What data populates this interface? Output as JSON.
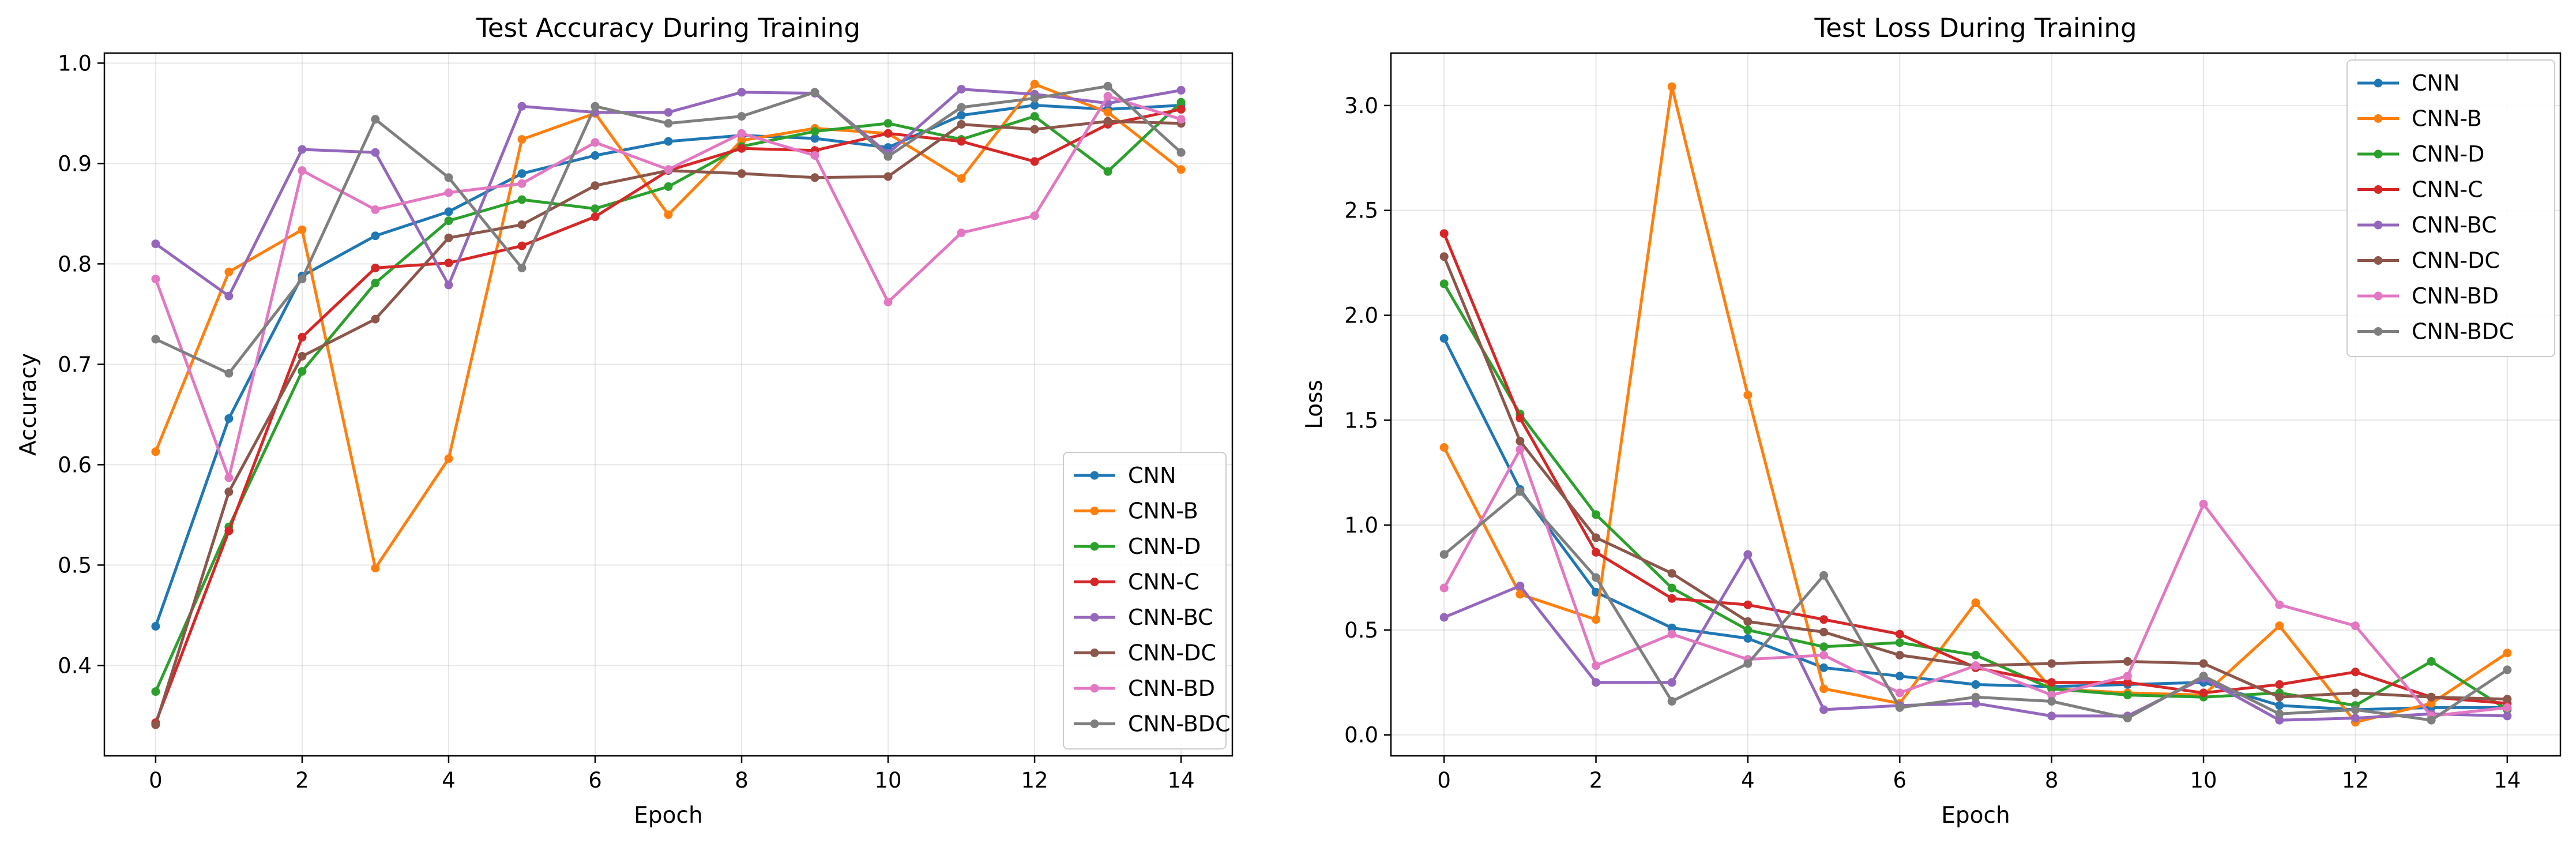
{
  "chart_data": [
    {
      "type": "line",
      "title": "Test Accuracy During Training",
      "xlabel": "Epoch",
      "ylabel": "Accuracy",
      "xlim": [
        -0.7,
        14.7
      ],
      "ylim": [
        0.31,
        1.01
      ],
      "xticks": [
        0,
        2,
        4,
        6,
        8,
        10,
        12,
        14
      ],
      "yticks": [
        0.4,
        0.5,
        0.6,
        0.7,
        0.8,
        0.9,
        1.0
      ],
      "ytick_labels": [
        "0.4",
        "0.5",
        "0.6",
        "0.7",
        "0.8",
        "0.9",
        "1.0"
      ],
      "grid": true,
      "legend_position": "lower-right",
      "x": [
        0,
        1,
        2,
        3,
        4,
        5,
        6,
        7,
        8,
        9,
        10,
        11,
        12,
        13,
        14
      ],
      "series": [
        {
          "name": "CNN",
          "color": "#1f77b4",
          "values": [
            0.439,
            0.646,
            0.788,
            0.828,
            0.852,
            0.89,
            0.908,
            0.922,
            0.928,
            0.925,
            0.916,
            0.948,
            0.958,
            0.954,
            0.958
          ]
        },
        {
          "name": "CNN-B",
          "color": "#ff7f0e",
          "values": [
            0.613,
            0.792,
            0.834,
            0.497,
            0.606,
            0.924,
            0.95,
            0.849,
            0.923,
            0.935,
            0.93,
            0.885,
            0.979,
            0.951,
            0.894
          ]
        },
        {
          "name": "CNN-D",
          "color": "#2ca02c",
          "values": [
            0.374,
            0.538,
            0.693,
            0.781,
            0.843,
            0.864,
            0.855,
            0.877,
            0.917,
            0.932,
            0.94,
            0.924,
            0.947,
            0.892,
            0.961
          ]
        },
        {
          "name": "CNN-C",
          "color": "#d62728",
          "values": [
            0.343,
            0.534,
            0.727,
            0.796,
            0.801,
            0.818,
            0.847,
            0.893,
            0.915,
            0.913,
            0.93,
            0.922,
            0.902,
            0.939,
            0.954
          ]
        },
        {
          "name": "CNN-BC",
          "color": "#9467bd",
          "values": [
            0.82,
            0.768,
            0.914,
            0.911,
            0.779,
            0.957,
            0.951,
            0.951,
            0.971,
            0.97,
            0.91,
            0.974,
            0.969,
            0.96,
            0.973
          ]
        },
        {
          "name": "CNN-DC",
          "color": "#8c564b",
          "values": [
            0.341,
            0.573,
            0.708,
            0.745,
            0.826,
            0.839,
            0.878,
            0.893,
            0.89,
            0.886,
            0.887,
            0.939,
            0.934,
            0.942,
            0.94
          ]
        },
        {
          "name": "CNN-BD",
          "color": "#e377c2",
          "values": [
            0.785,
            0.587,
            0.893,
            0.854,
            0.871,
            0.88,
            0.921,
            0.894,
            0.93,
            0.908,
            0.762,
            0.831,
            0.848,
            0.967,
            0.944
          ]
        },
        {
          "name": "CNN-BDC",
          "color": "#7f7f7f",
          "values": [
            0.725,
            0.691,
            0.785,
            0.944,
            0.886,
            0.796,
            0.957,
            0.94,
            0.947,
            0.971,
            0.907,
            0.956,
            0.965,
            0.977,
            0.911
          ]
        }
      ]
    },
    {
      "type": "line",
      "title": "Test Loss During Training",
      "xlabel": "Epoch",
      "ylabel": "Loss",
      "xlim": [
        -0.7,
        14.7
      ],
      "ylim": [
        -0.1,
        3.25
      ],
      "xticks": [
        0,
        2,
        4,
        6,
        8,
        10,
        12,
        14
      ],
      "yticks": [
        0.0,
        0.5,
        1.0,
        1.5,
        2.0,
        2.5,
        3.0
      ],
      "ytick_labels": [
        "0.0",
        "0.5",
        "1.0",
        "1.5",
        "2.0",
        "2.5",
        "3.0"
      ],
      "grid": true,
      "legend_position": "upper-right",
      "x": [
        0,
        1,
        2,
        3,
        4,
        5,
        6,
        7,
        8,
        9,
        10,
        11,
        12,
        13,
        14
      ],
      "series": [
        {
          "name": "CNN",
          "color": "#1f77b4",
          "values": [
            1.89,
            1.17,
            0.68,
            0.51,
            0.46,
            0.32,
            0.28,
            0.24,
            0.23,
            0.24,
            0.25,
            0.14,
            0.12,
            0.13,
            0.13
          ]
        },
        {
          "name": "CNN-B",
          "color": "#ff7f0e",
          "values": [
            1.37,
            0.67,
            0.55,
            3.09,
            1.62,
            0.22,
            0.15,
            0.63,
            0.22,
            0.2,
            0.19,
            0.52,
            0.06,
            0.15,
            0.39
          ]
        },
        {
          "name": "CNN-D",
          "color": "#2ca02c",
          "values": [
            2.15,
            1.53,
            1.05,
            0.7,
            0.5,
            0.42,
            0.44,
            0.38,
            0.22,
            0.19,
            0.18,
            0.2,
            0.14,
            0.35,
            0.12
          ]
        },
        {
          "name": "CNN-C",
          "color": "#d62728",
          "values": [
            2.39,
            1.51,
            0.87,
            0.65,
            0.62,
            0.55,
            0.48,
            0.32,
            0.25,
            0.25,
            0.2,
            0.24,
            0.3,
            0.18,
            0.15
          ]
        },
        {
          "name": "CNN-BC",
          "color": "#9467bd",
          "values": [
            0.56,
            0.71,
            0.25,
            0.25,
            0.86,
            0.12,
            0.14,
            0.15,
            0.09,
            0.09,
            0.27,
            0.07,
            0.08,
            0.1,
            0.09
          ]
        },
        {
          "name": "CNN-DC",
          "color": "#8c564b",
          "values": [
            2.28,
            1.4,
            0.94,
            0.77,
            0.54,
            0.49,
            0.38,
            0.33,
            0.34,
            0.35,
            0.34,
            0.18,
            0.2,
            0.18,
            0.17
          ]
        },
        {
          "name": "CNN-BD",
          "color": "#e377c2",
          "values": [
            0.7,
            1.36,
            0.33,
            0.48,
            0.36,
            0.38,
            0.2,
            0.33,
            0.19,
            0.28,
            1.1,
            0.62,
            0.52,
            0.09,
            0.13
          ]
        },
        {
          "name": "CNN-BDC",
          "color": "#7f7f7f",
          "values": [
            0.86,
            1.16,
            0.75,
            0.16,
            0.34,
            0.76,
            0.13,
            0.18,
            0.16,
            0.08,
            0.28,
            0.1,
            0.12,
            0.07,
            0.31
          ]
        }
      ]
    }
  ]
}
